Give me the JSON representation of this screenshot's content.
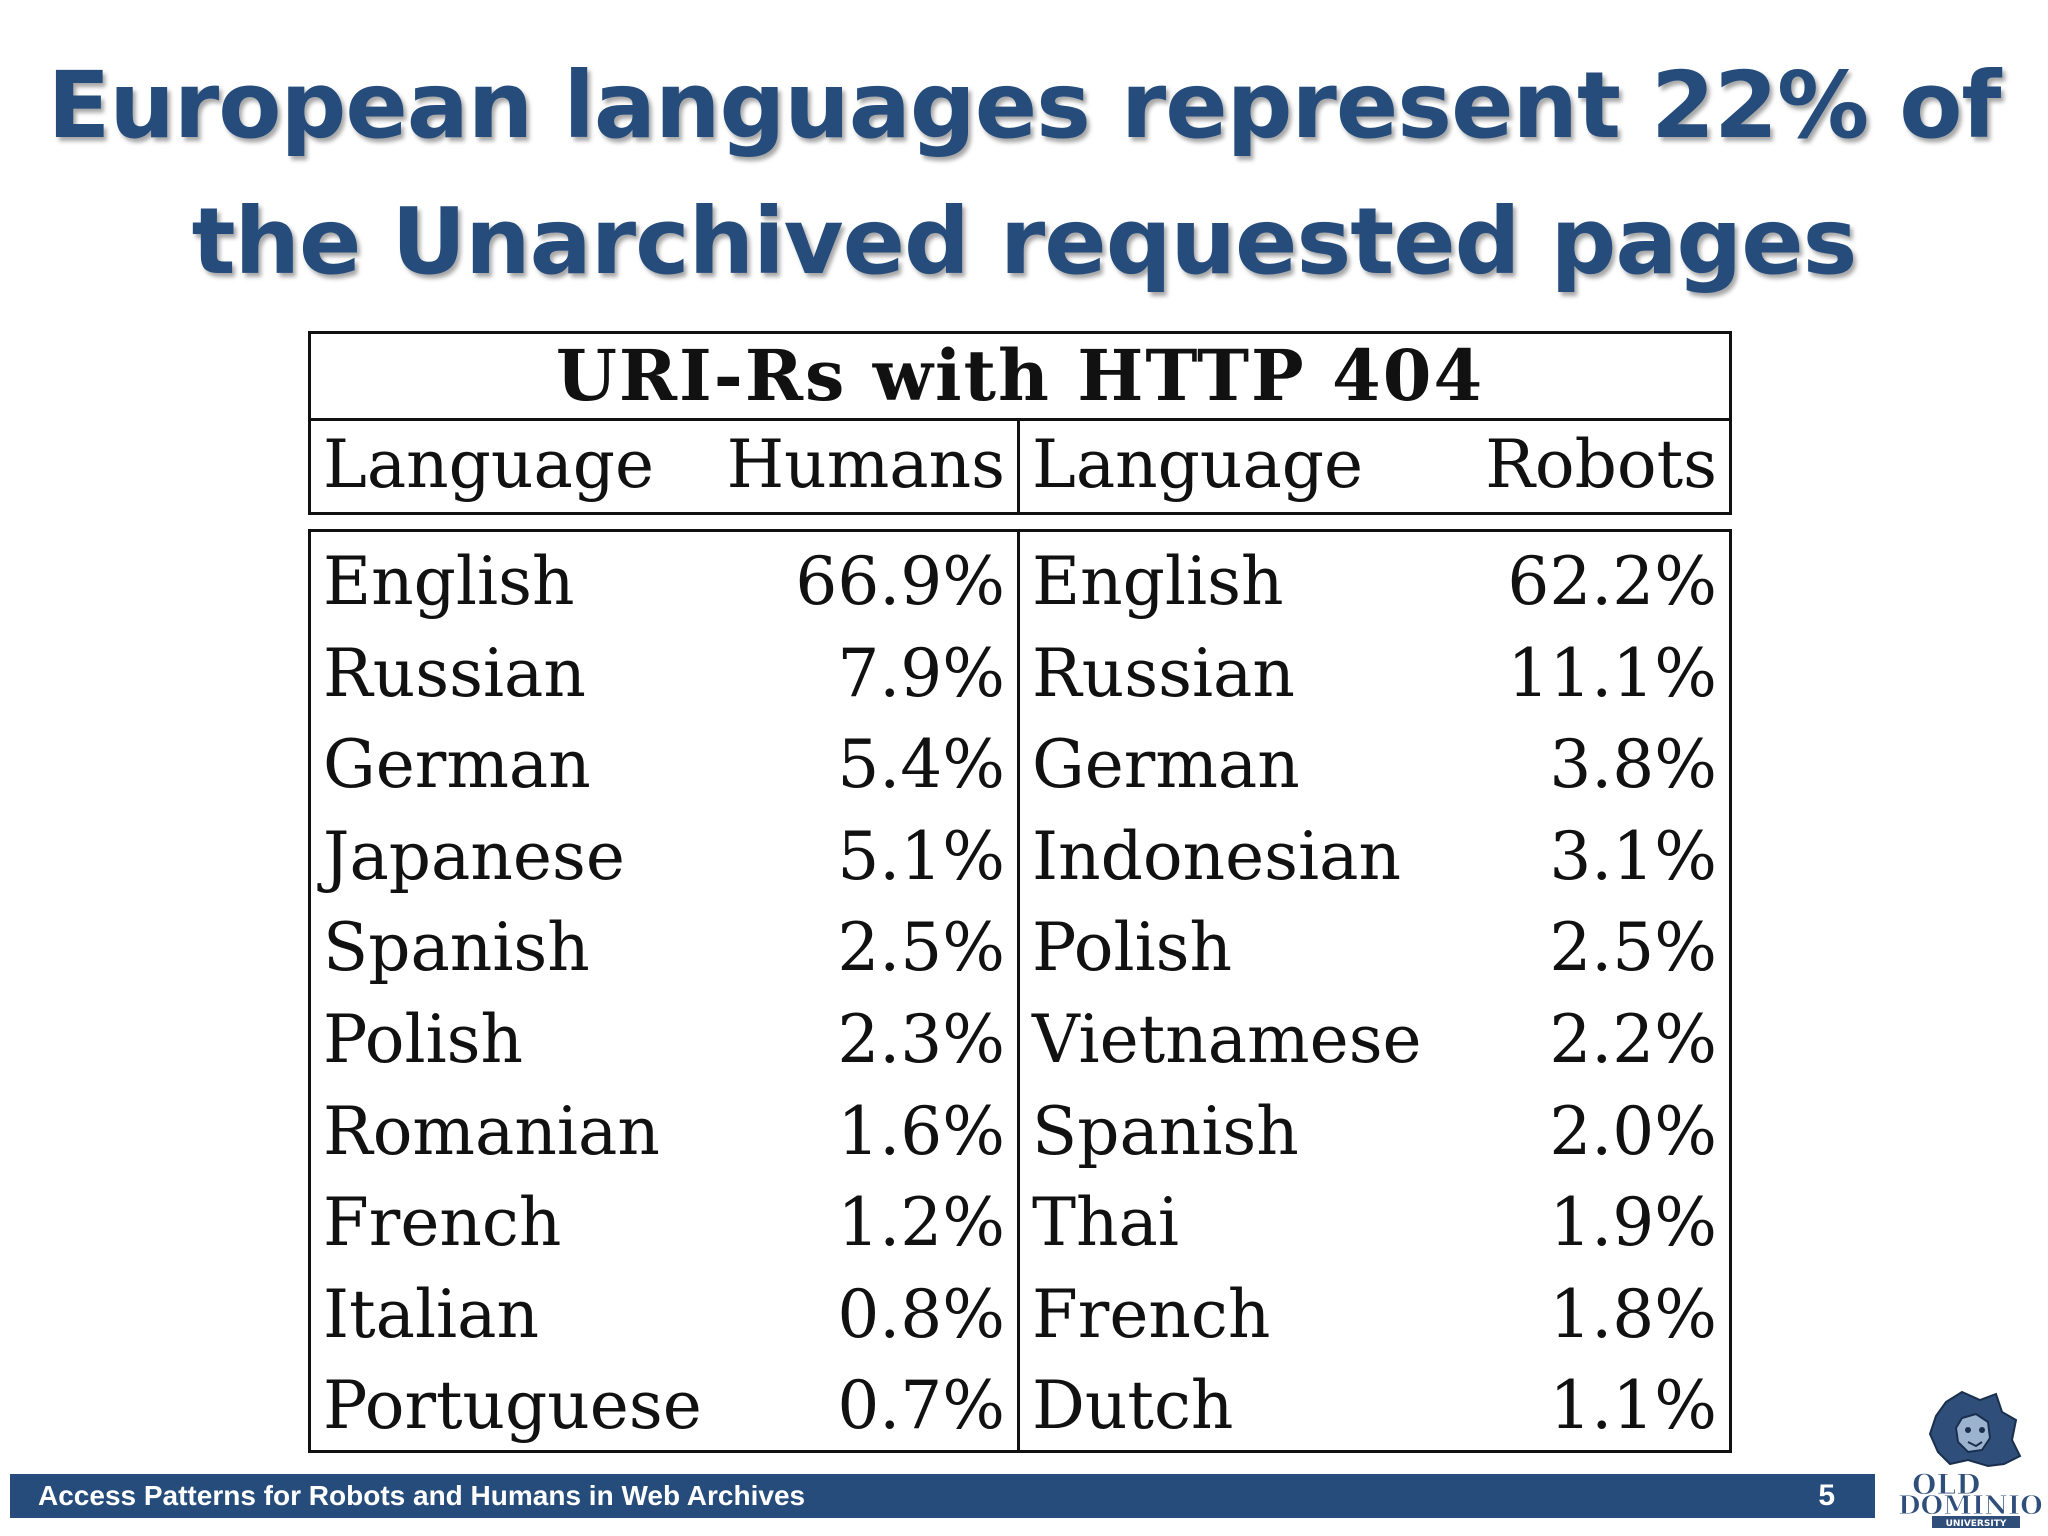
{
  "slide": {
    "title_line1": "European languages represent 22% of",
    "title_line2": "the Unarchived requested pages"
  },
  "table": {
    "caption": "URI-Rs with HTTP 404",
    "headers": {
      "left_language": "Language",
      "left_value": "Humans",
      "right_language": "Language",
      "right_value": "Robots"
    },
    "humans": [
      {
        "language": "English",
        "percent": "66.9%"
      },
      {
        "language": "Russian",
        "percent": "7.9%"
      },
      {
        "language": "German",
        "percent": "5.4%"
      },
      {
        "language": "Japanese",
        "percent": "5.1%"
      },
      {
        "language": "Spanish",
        "percent": "2.5%"
      },
      {
        "language": "Polish",
        "percent": "2.3%"
      },
      {
        "language": "Romanian",
        "percent": "1.6%"
      },
      {
        "language": "French",
        "percent": "1.2%"
      },
      {
        "language": "Italian",
        "percent": "0.8%"
      },
      {
        "language": "Portuguese",
        "percent": "0.7%"
      }
    ],
    "robots": [
      {
        "language": "English",
        "percent": "62.2%"
      },
      {
        "language": "Russian",
        "percent": "11.1%"
      },
      {
        "language": "German",
        "percent": "3.8%"
      },
      {
        "language": "Indonesian",
        "percent": "3.1%"
      },
      {
        "language": "Polish",
        "percent": "2.5%"
      },
      {
        "language": "Vietnamese",
        "percent": "2.2%"
      },
      {
        "language": "Spanish",
        "percent": "2.0%"
      },
      {
        "language": "Thai",
        "percent": "1.9%"
      },
      {
        "language": "French",
        "percent": "1.8%"
      },
      {
        "language": "Dutch",
        "percent": "1.1%"
      }
    ]
  },
  "footer": {
    "text": "Access Patterns for Robots and Humans in Web Archives",
    "page_number": "5"
  },
  "logo": {
    "icon": "university-lion-logo",
    "text_line1": "OLD",
    "text_line2": "DOMINION",
    "text_line3": "UNIVERSITY"
  },
  "colors": {
    "title": "#264c7c",
    "footer_bar": "#264c7c",
    "footer_text": "#ffffff"
  }
}
